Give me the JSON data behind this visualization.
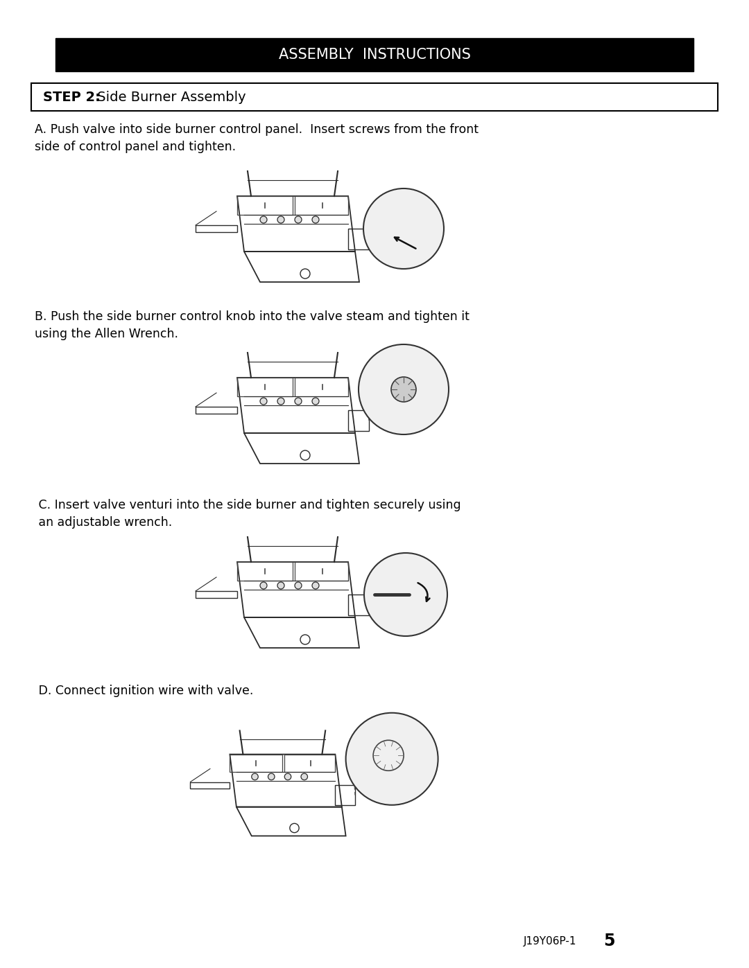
{
  "background_color": "#ffffff",
  "header_bg": "#000000",
  "header_text": "ASSEMBLY  INSTRUCTIONS",
  "header_text_color": "#ffffff",
  "header_fontsize": 15,
  "step_box_text_bold": "STEP 2:",
  "step_box_text_normal": " Side Burner Assembly",
  "step_fontsize": 14,
  "body_fontsize": 12.5,
  "section_A_text": "A. Push valve into side burner control panel.  Insert screws from the front\nside of control panel and tighten.",
  "section_B_text": "B. Push the side burner control knob into the valve steam and tighten it\nusing the Allen Wrench.",
  "section_C_text": " C. Insert valve venturi into the side burner and tighten securely using\n an adjustable wrench.",
  "section_D_text": " D. Connect ignition wire with valve.",
  "footer_text": "J19Y06P-1",
  "footer_page": "5"
}
